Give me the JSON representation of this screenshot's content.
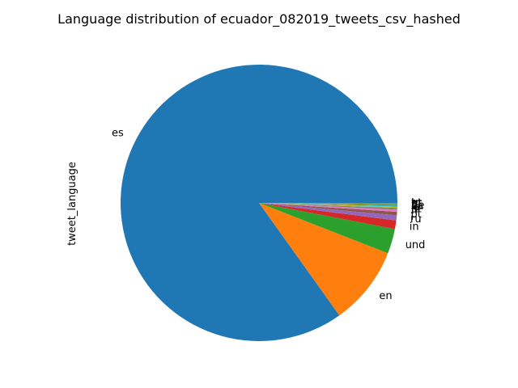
{
  "chart_data": {
    "type": "pie",
    "title": "Language distribution of ecuador_082019_tweets_csv_hashed",
    "ylabel": "tweet_language",
    "start_angle_deg": 0,
    "direction": "counterclockwise",
    "slices": [
      {
        "label": "es",
        "value": 84.8,
        "color": "#1f77b4"
      },
      {
        "label": "en",
        "value": 9.2,
        "color": "#ff7f0e"
      },
      {
        "label": "und",
        "value": 2.9,
        "color": "#2ca02c"
      },
      {
        "label": "in",
        "value": 1.0,
        "color": "#d62728"
      },
      {
        "label": "ru",
        "value": 0.6,
        "color": "#9467bd"
      },
      {
        "label": "pt",
        "value": 0.4,
        "color": "#8c564b"
      },
      {
        "label": "fr",
        "value": 0.25,
        "color": "#e377c2"
      },
      {
        "label": "it",
        "value": 0.2,
        "color": "#7f7f7f"
      },
      {
        "label": "ja",
        "value": 0.15,
        "color": "#bcbd22"
      },
      {
        "label": "ca",
        "value": 0.1,
        "color": "#17becf"
      },
      {
        "label": "de",
        "value": 0.08,
        "color": "#1f77b4"
      },
      {
        "label": "tl",
        "value": 0.07,
        "color": "#ff7f0e"
      },
      {
        "label": "nl",
        "value": 0.06,
        "color": "#2ca02c"
      },
      {
        "label": "ht",
        "value": 0.05,
        "color": "#d62728"
      },
      {
        "label": "et",
        "value": 0.04,
        "color": "#9467bd"
      },
      {
        "label": "tr",
        "value": 0.03,
        "color": "#8c564b"
      }
    ]
  }
}
